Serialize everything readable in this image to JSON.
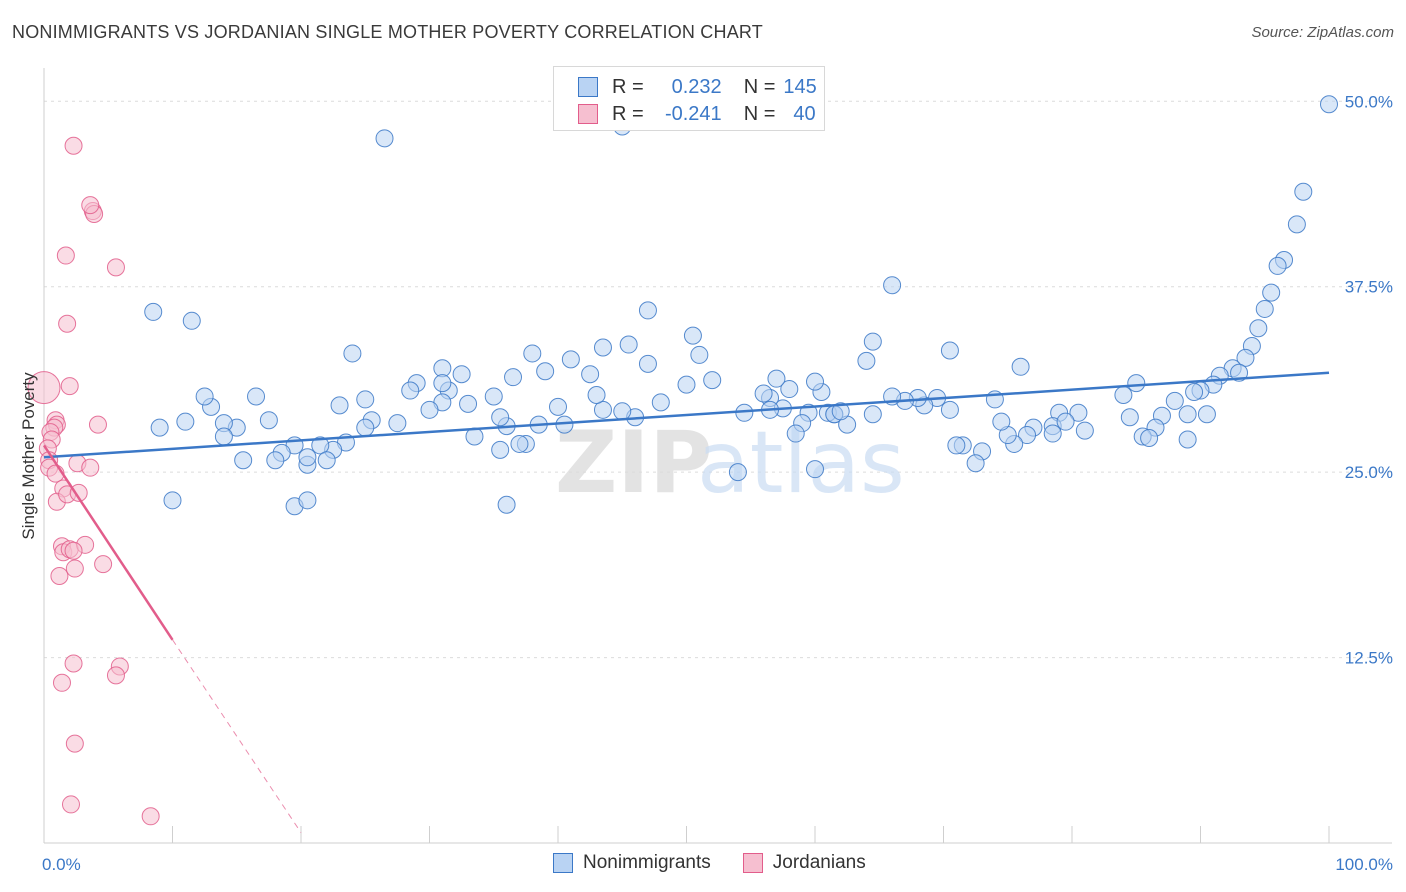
{
  "title": "NONIMMIGRANTS VS JORDANIAN SINGLE MOTHER POVERTY CORRELATION CHART",
  "source": "Source: ZipAtlas.com",
  "watermark": {
    "part1": "ZIP",
    "part2": "atlas"
  },
  "legend_top": {
    "r_label": "R =",
    "n_label": "N =",
    "rows": [
      {
        "series": "Nonimmigrants",
        "r": "0.232",
        "n": "145"
      },
      {
        "series": "Jordanians",
        "r": "-0.241",
        "n": "40"
      }
    ]
  },
  "chart_data": {
    "type": "scatter",
    "title": "NONIMMIGRANTS VS JORDANIAN SINGLE MOTHER POVERTY CORRELATION CHART",
    "xlabel": "",
    "ylabel": "Single Mother Poverty",
    "xlim": [
      0,
      100
    ],
    "ylim": [
      0,
      51.5
    ],
    "x_tick_labels": [
      {
        "value": 0,
        "label": "0.0%"
      },
      {
        "value": 100,
        "label": "100.0%"
      }
    ],
    "y_tick_labels": [
      {
        "value": 12.5,
        "label": "12.5%"
      },
      {
        "value": 25.0,
        "label": "25.0%"
      },
      {
        "value": 37.5,
        "label": "37.5%"
      },
      {
        "value": 50.0,
        "label": "50.0%"
      }
    ],
    "series": [
      {
        "name": "Nonimmigrants",
        "color": "#3b78c7",
        "fill": "#b9d3f3",
        "r": 0.232,
        "n": 145,
        "trend": {
          "x0": 0,
          "y0": 26.0,
          "x1": 100,
          "y1": 31.7
        },
        "points": [
          [
            26.5,
            47.5
          ],
          [
            45.0,
            48.3
          ],
          [
            100,
            49.8
          ],
          [
            98.0,
            43.9
          ],
          [
            97.5,
            41.7
          ],
          [
            96.5,
            39.3
          ],
          [
            96.0,
            38.9
          ],
          [
            95.5,
            37.1
          ],
          [
            95.0,
            36.0
          ],
          [
            94.5,
            34.7
          ],
          [
            94.0,
            33.5
          ],
          [
            93.5,
            32.7
          ],
          [
            92.5,
            32.0
          ],
          [
            91.5,
            31.5
          ],
          [
            93.0,
            31.7
          ],
          [
            91.0,
            30.9
          ],
          [
            90.0,
            30.5
          ],
          [
            89.5,
            30.4
          ],
          [
            88.0,
            29.8
          ],
          [
            89.0,
            28.9
          ],
          [
            90.5,
            28.9
          ],
          [
            87.0,
            28.8
          ],
          [
            86.5,
            28.0
          ],
          [
            85.5,
            27.4
          ],
          [
            89.0,
            27.2
          ],
          [
            86.0,
            27.3
          ],
          [
            84.5,
            28.7
          ],
          [
            84.0,
            30.2
          ],
          [
            85.0,
            31.0
          ],
          [
            80.5,
            29.0
          ],
          [
            79.0,
            29.0
          ],
          [
            81.0,
            27.8
          ],
          [
            78.5,
            28.1
          ],
          [
            78.5,
            27.6
          ],
          [
            77.0,
            28.0
          ],
          [
            76.5,
            27.5
          ],
          [
            75.5,
            26.9
          ],
          [
            79.5,
            28.4
          ],
          [
            75.0,
            27.5
          ],
          [
            74.5,
            28.4
          ],
          [
            73.0,
            26.4
          ],
          [
            72.5,
            25.6
          ],
          [
            74.0,
            29.9
          ],
          [
            76.0,
            32.1
          ],
          [
            71.5,
            26.8
          ],
          [
            71.0,
            26.8
          ],
          [
            70.5,
            29.2
          ],
          [
            69.5,
            30.0
          ],
          [
            68.5,
            29.5
          ],
          [
            68.0,
            30.0
          ],
          [
            67.0,
            29.8
          ],
          [
            66.0,
            30.1
          ],
          [
            64.5,
            28.9
          ],
          [
            64.0,
            32.5
          ],
          [
            61.5,
            28.9
          ],
          [
            61.0,
            29.0
          ],
          [
            60.5,
            30.4
          ],
          [
            59.5,
            29.0
          ],
          [
            59.0,
            28.3
          ],
          [
            58.5,
            27.6
          ],
          [
            57.5,
            29.3
          ],
          [
            56.5,
            30.0
          ],
          [
            56.0,
            30.3
          ],
          [
            54.5,
            29.0
          ],
          [
            64.5,
            33.8
          ],
          [
            70.5,
            33.2
          ],
          [
            66.0,
            37.6
          ],
          [
            61.5,
            28.9
          ],
          [
            62.5,
            28.2
          ],
          [
            60.0,
            25.2
          ],
          [
            54.0,
            25.0
          ],
          [
            50.5,
            34.2
          ],
          [
            51.0,
            32.9
          ],
          [
            47.0,
            35.9
          ],
          [
            45.5,
            33.6
          ],
          [
            46.0,
            28.7
          ],
          [
            45.0,
            29.1
          ],
          [
            43.5,
            29.2
          ],
          [
            43.0,
            30.2
          ],
          [
            42.5,
            31.6
          ],
          [
            40.5,
            28.2
          ],
          [
            40.0,
            29.4
          ],
          [
            41.0,
            32.6
          ],
          [
            38.5,
            28.2
          ],
          [
            37.5,
            26.9
          ],
          [
            37.0,
            26.9
          ],
          [
            36.0,
            28.1
          ],
          [
            35.0,
            30.1
          ],
          [
            35.5,
            28.7
          ],
          [
            33.0,
            29.6
          ],
          [
            31.5,
            30.5
          ],
          [
            31.0,
            29.7
          ],
          [
            30.0,
            29.2
          ],
          [
            29.0,
            31.0
          ],
          [
            28.5,
            30.5
          ],
          [
            25.0,
            29.9
          ],
          [
            25.5,
            28.5
          ],
          [
            25.0,
            28.0
          ],
          [
            23.0,
            29.5
          ],
          [
            23.5,
            27.0
          ],
          [
            22.5,
            26.5
          ],
          [
            21.5,
            26.8
          ],
          [
            20.5,
            25.5
          ],
          [
            20.5,
            26.0
          ],
          [
            19.5,
            26.8
          ],
          [
            18.5,
            26.3
          ],
          [
            18.0,
            25.8
          ],
          [
            17.5,
            28.5
          ],
          [
            16.5,
            30.1
          ],
          [
            15.0,
            28.0
          ],
          [
            14.0,
            28.3
          ],
          [
            13.0,
            29.4
          ],
          [
            12.5,
            30.1
          ],
          [
            11.0,
            28.4
          ],
          [
            10.0,
            23.1
          ],
          [
            8.5,
            35.8
          ],
          [
            9.0,
            28.0
          ],
          [
            11.5,
            35.2
          ],
          [
            14.0,
            27.4
          ],
          [
            15.5,
            25.8
          ],
          [
            19.5,
            22.7
          ],
          [
            20.5,
            23.1
          ],
          [
            22.0,
            25.8
          ],
          [
            24.0,
            33.0
          ],
          [
            32.5,
            31.6
          ],
          [
            31.0,
            32.0
          ],
          [
            36.0,
            22.8
          ],
          [
            27.5,
            28.3
          ],
          [
            31.0,
            31.0
          ],
          [
            33.5,
            27.4
          ],
          [
            35.5,
            26.5
          ],
          [
            38.0,
            33.0
          ],
          [
            36.5,
            31.4
          ],
          [
            39.0,
            31.8
          ],
          [
            43.5,
            33.4
          ],
          [
            47.0,
            32.3
          ],
          [
            48.0,
            29.7
          ],
          [
            50.0,
            30.9
          ],
          [
            52.0,
            31.2
          ],
          [
            56.5,
            29.2
          ],
          [
            58.0,
            30.6
          ],
          [
            60.0,
            31.1
          ],
          [
            62.0,
            29.1
          ],
          [
            57.0,
            31.3
          ]
        ]
      },
      {
        "name": "Jordanians",
        "color": "#e25d8b",
        "fill": "#f6bfd0",
        "r": -0.241,
        "n": 40,
        "trend": {
          "x0": 0,
          "y0": 26.8,
          "x1": 10,
          "y1": 13.7
        },
        "trend_dashed": {
          "x0": 10,
          "y0": 13.7,
          "x1": 20,
          "y1": 0.7
        },
        "points": [
          [
            0.0,
            30.7
          ],
          [
            2.3,
            47.0
          ],
          [
            3.8,
            42.6
          ],
          [
            3.9,
            42.4
          ],
          [
            5.6,
            38.8
          ],
          [
            1.7,
            39.6
          ],
          [
            1.8,
            35.0
          ],
          [
            2.0,
            30.8
          ],
          [
            0.9,
            28.5
          ],
          [
            1.0,
            28.2
          ],
          [
            0.8,
            28.0
          ],
          [
            4.2,
            28.2
          ],
          [
            0.5,
            27.7
          ],
          [
            0.6,
            27.2
          ],
          [
            0.3,
            26.6
          ],
          [
            0.4,
            25.8
          ],
          [
            0.4,
            25.3
          ],
          [
            2.6,
            25.6
          ],
          [
            3.6,
            25.3
          ],
          [
            0.9,
            24.9
          ],
          [
            1.5,
            23.9
          ],
          [
            1.0,
            23.0
          ],
          [
            1.8,
            23.5
          ],
          [
            2.7,
            23.6
          ],
          [
            1.4,
            20.0
          ],
          [
            1.5,
            19.6
          ],
          [
            2.0,
            19.8
          ],
          [
            3.2,
            20.1
          ],
          [
            2.3,
            19.7
          ],
          [
            1.2,
            18.0
          ],
          [
            2.4,
            18.5
          ],
          [
            4.6,
            18.8
          ],
          [
            2.3,
            12.1
          ],
          [
            1.4,
            10.8
          ],
          [
            5.9,
            11.9
          ],
          [
            5.6,
            11.3
          ],
          [
            2.4,
            6.7
          ],
          [
            2.1,
            2.6
          ],
          [
            8.3,
            1.8
          ],
          [
            3.6,
            43.0
          ]
        ]
      }
    ]
  }
}
